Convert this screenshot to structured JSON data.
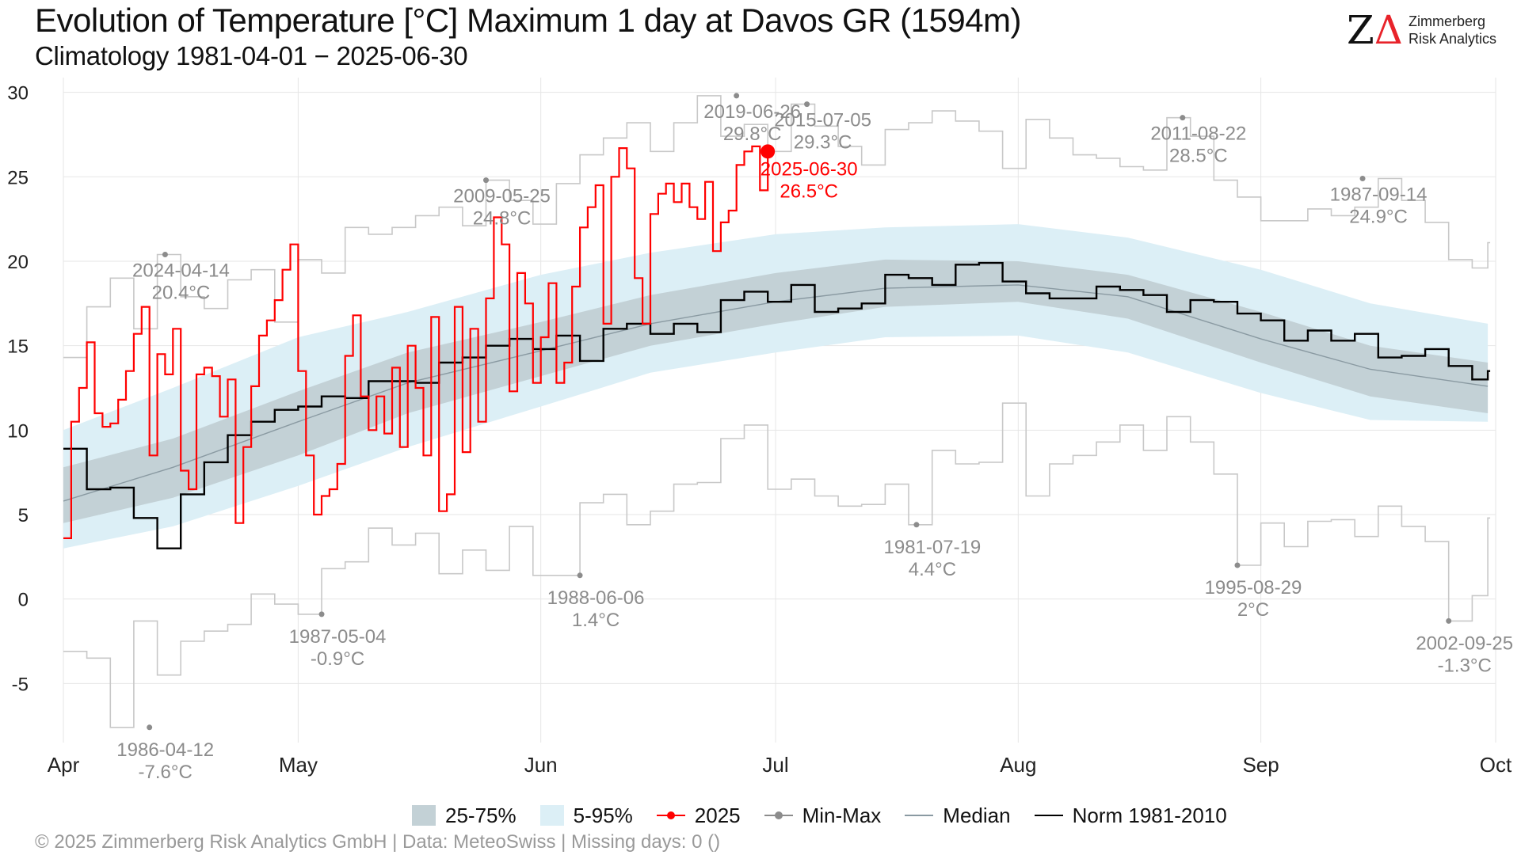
{
  "header": {
    "title": "Evolution of Temperature [°C] Maximum 1 day at Davos  GR (1594m)",
    "subtitle": "Climatology 1981-04-01 − 2025-06-30"
  },
  "logo": {
    "mark_z": "Z",
    "mark_delta": "Δ",
    "line1": "Zimmerberg",
    "line2": "Risk Analytics"
  },
  "footer": "©  2025 Zimmerberg Risk Analytics GmbH | Data: MeteoSwiss | Missing days: 0 ()",
  "colors": {
    "band_inner": "#c3d1d6",
    "band_outer": "#dceff6",
    "current": "#ff0000",
    "minmax": "#c8c8c8",
    "median": "#8a9aa2",
    "norm": "#000000",
    "grid": "#e6e6e6",
    "annotation": "#8c8c8c"
  },
  "legend": [
    {
      "label": "25-75%",
      "kind": "box",
      "color": "#c3d1d6"
    },
    {
      "label": "5-95%",
      "kind": "box",
      "color": "#dceff6"
    },
    {
      "label": "2025",
      "kind": "line-dot",
      "color": "#ff0000"
    },
    {
      "label": "Min-Max",
      "kind": "line-dot",
      "color": "#8c8c8c"
    },
    {
      "label": "Median",
      "kind": "line",
      "color": "#8a9aa2"
    },
    {
      "label": "Norm 1981-2010",
      "kind": "line",
      "color": "#000000"
    }
  ],
  "chart_data": {
    "type": "line",
    "title": "Evolution of Temperature [°C] Maximum 1 day at Davos  GR (1594m)",
    "subtitle": "Climatology 1981-04-01 − 2025-06-30",
    "x_start": "04-01",
    "x_end": "10-01",
    "x_ticks": [
      {
        "label": "Apr",
        "date": "04-01"
      },
      {
        "label": "May",
        "date": "05-01"
      },
      {
        "label": "Jun",
        "date": "06-01"
      },
      {
        "label": "Jul",
        "date": "07-01"
      },
      {
        "label": "Aug",
        "date": "08-01"
      },
      {
        "label": "Sep",
        "date": "09-01"
      },
      {
        "label": "Oct",
        "date": "10-01"
      }
    ],
    "ylim": [
      -8.5,
      30.5
    ],
    "y_ticks": [
      -5,
      0,
      5,
      10,
      15,
      20,
      25,
      30
    ],
    "grid": true,
    "legend_position": "bottom",
    "series": [
      {
        "name": "25-75%",
        "kind": "band",
        "x": [
          "04-01",
          "04-15",
          "05-01",
          "05-15",
          "06-01",
          "06-15",
          "07-01",
          "07-15",
          "08-01",
          "08-15",
          "09-01",
          "09-15",
          "09-30"
        ],
        "low": [
          4.5,
          6.0,
          8.5,
          11.0,
          13.2,
          15.0,
          16.3,
          17.3,
          17.6,
          16.6,
          14.0,
          12.0,
          11.0
        ],
        "high": [
          7.8,
          9.5,
          12.3,
          14.6,
          16.4,
          18.0,
          19.3,
          20.1,
          20.0,
          19.2,
          17.0,
          15.0,
          14.0
        ]
      },
      {
        "name": "5-95%",
        "kind": "band",
        "x": [
          "04-01",
          "04-15",
          "05-01",
          "05-15",
          "06-01",
          "06-15",
          "07-01",
          "07-15",
          "08-01",
          "08-15",
          "09-01",
          "09-15",
          "09-30"
        ],
        "low": [
          3.0,
          4.3,
          6.7,
          9.0,
          11.4,
          13.4,
          14.6,
          15.5,
          15.6,
          14.6,
          12.2,
          10.6,
          10.5
        ],
        "high": [
          10.0,
          12.5,
          15.5,
          17.0,
          19.2,
          20.5,
          21.6,
          22.0,
          22.2,
          21.4,
          19.5,
          17.5,
          16.3
        ]
      },
      {
        "name": "Median",
        "x": [
          "04-01",
          "04-15",
          "05-01",
          "05-15",
          "06-01",
          "06-15",
          "07-01",
          "07-15",
          "08-01",
          "08-15",
          "09-01",
          "09-15",
          "09-30"
        ],
        "y": [
          5.8,
          7.8,
          10.5,
          12.8,
          14.7,
          16.3,
          17.6,
          18.4,
          18.6,
          17.9,
          15.4,
          13.6,
          12.6
        ]
      },
      {
        "name": "Norm 1981-2010",
        "kind": "step",
        "x": [
          "04-01",
          "04-04",
          "04-07",
          "04-10",
          "04-13",
          "04-16",
          "04-19",
          "04-22",
          "04-25",
          "04-28",
          "05-01",
          "05-04",
          "05-07",
          "05-10",
          "05-13",
          "05-16",
          "05-19",
          "05-22",
          "05-25",
          "05-28",
          "05-31",
          "06-03",
          "06-06",
          "06-09",
          "06-12",
          "06-15",
          "06-18",
          "06-21",
          "06-24",
          "06-27",
          "06-30",
          "07-03",
          "07-06",
          "07-09",
          "07-12",
          "07-15",
          "07-18",
          "07-21",
          "07-24",
          "07-27",
          "07-30",
          "08-02",
          "08-05",
          "08-08",
          "08-11",
          "08-14",
          "08-17",
          "08-20",
          "08-23",
          "08-26",
          "08-29",
          "09-01",
          "09-04",
          "09-07",
          "09-10",
          "09-13",
          "09-16",
          "09-19",
          "09-22",
          "09-25",
          "09-28",
          "09-30"
        ],
        "y": [
          8.9,
          6.5,
          6.6,
          4.8,
          3.0,
          6.2,
          8.1,
          9.7,
          10.5,
          11.2,
          11.4,
          12.0,
          11.9,
          12.9,
          12.9,
          12.8,
          14.0,
          14.3,
          15.0,
          15.4,
          14.8,
          15.6,
          14.1,
          16.0,
          16.3,
          15.7,
          16.3,
          15.8,
          17.7,
          18.2,
          17.6,
          18.6,
          17.0,
          17.2,
          17.5,
          19.2,
          19.0,
          18.6,
          19.8,
          19.9,
          18.8,
          18.1,
          17.8,
          17.8,
          18.5,
          18.3,
          18.0,
          17.0,
          17.7,
          17.6,
          16.9,
          16.5,
          15.3,
          15.9,
          15.3,
          15.7,
          14.3,
          14.4,
          14.8,
          13.8,
          13.0,
          13.5
        ]
      },
      {
        "name": "Min-Max",
        "kind": "step-pair",
        "x": [
          "04-01",
          "04-04",
          "04-07",
          "04-10",
          "04-13",
          "04-16",
          "04-19",
          "04-22",
          "04-25",
          "04-28",
          "05-01",
          "05-04",
          "05-07",
          "05-10",
          "05-13",
          "05-16",
          "05-19",
          "05-22",
          "05-25",
          "05-28",
          "05-31",
          "06-03",
          "06-06",
          "06-09",
          "06-12",
          "06-15",
          "06-18",
          "06-21",
          "06-24",
          "06-27",
          "06-30",
          "07-03",
          "07-06",
          "07-09",
          "07-12",
          "07-15",
          "07-18",
          "07-21",
          "07-24",
          "07-27",
          "07-30",
          "08-02",
          "08-05",
          "08-08",
          "08-11",
          "08-14",
          "08-17",
          "08-20",
          "08-23",
          "08-26",
          "08-29",
          "09-01",
          "09-04",
          "09-07",
          "09-10",
          "09-13",
          "09-16",
          "09-19",
          "09-22",
          "09-25",
          "09-28",
          "09-30"
        ],
        "max": [
          14.3,
          17.3,
          19.0,
          16.0,
          20.4,
          17.9,
          17.2,
          18.9,
          19.5,
          16.4,
          20.1,
          19.3,
          22.0,
          21.6,
          22.0,
          22.7,
          23.2,
          22.1,
          24.8,
          23.6,
          22.2,
          24.6,
          26.3,
          27.3,
          28.2,
          26.5,
          28.2,
          29.8,
          27.4,
          28.1,
          26.5,
          29.3,
          28.0,
          26.8,
          25.7,
          27.8,
          28.2,
          28.9,
          28.3,
          27.7,
          25.5,
          28.4,
          27.3,
          26.3,
          26.1,
          25.6,
          25.4,
          28.5,
          27.4,
          24.8,
          23.8,
          22.4,
          22.4,
          23.1,
          22.7,
          23.2,
          24.9,
          23.6,
          22.3,
          20.1,
          19.6,
          21.1
        ],
        "min": [
          -3.1,
          -3.5,
          -7.6,
          -1.3,
          -4.5,
          -2.5,
          -1.9,
          -1.5,
          0.3,
          -0.3,
          -0.9,
          1.8,
          2.2,
          4.2,
          3.2,
          3.9,
          1.5,
          2.9,
          1.7,
          4.3,
          1.4,
          1.4,
          5.7,
          6.2,
          4.4,
          5.2,
          6.8,
          6.9,
          9.5,
          10.3,
          6.5,
          7.1,
          6.1,
          5.5,
          5.6,
          6.8,
          4.4,
          8.8,
          8.0,
          8.1,
          11.6,
          6.1,
          8.0,
          8.5,
          9.3,
          10.3,
          8.8,
          10.8,
          9.3,
          7.4,
          2.0,
          4.5,
          3.1,
          4.6,
          4.7,
          3.7,
          5.5,
          4.3,
          3.4,
          -1.3,
          0.2,
          4.8
        ]
      },
      {
        "name": "2025",
        "kind": "step",
        "x": [
          "04-01",
          "04-02",
          "04-03",
          "04-04",
          "04-05",
          "04-06",
          "04-07",
          "04-08",
          "04-09",
          "04-10",
          "04-11",
          "04-12",
          "04-13",
          "04-14",
          "04-15",
          "04-16",
          "04-17",
          "04-18",
          "04-19",
          "04-20",
          "04-21",
          "04-22",
          "04-23",
          "04-24",
          "04-25",
          "04-26",
          "04-27",
          "04-28",
          "04-29",
          "04-30",
          "05-01",
          "05-02",
          "05-03",
          "05-04",
          "05-05",
          "05-06",
          "05-07",
          "05-08",
          "05-09",
          "05-10",
          "05-11",
          "05-12",
          "05-13",
          "05-14",
          "05-15",
          "05-16",
          "05-17",
          "05-18",
          "05-19",
          "05-20",
          "05-21",
          "05-22",
          "05-23",
          "05-24",
          "05-25",
          "05-26",
          "05-27",
          "05-28",
          "05-29",
          "05-30",
          "05-31",
          "06-01",
          "06-02",
          "06-03",
          "06-04",
          "06-05",
          "06-06",
          "06-07",
          "06-08",
          "06-09",
          "06-10",
          "06-11",
          "06-12",
          "06-13",
          "06-14",
          "06-15",
          "06-16",
          "06-17",
          "06-18",
          "06-19",
          "06-20",
          "06-21",
          "06-22",
          "06-23",
          "06-24",
          "06-25",
          "06-26",
          "06-27",
          "06-28",
          "06-29",
          "06-30"
        ],
        "y": [
          3.6,
          10.5,
          12.5,
          15.2,
          11.0,
          10.2,
          10.4,
          11.8,
          13.5,
          15.7,
          17.3,
          8.5,
          14.5,
          13.3,
          16.0,
          7.6,
          6.5,
          13.3,
          13.7,
          13.2,
          10.8,
          13.0,
          4.5,
          9.0,
          12.6,
          15.6,
          16.5,
          17.7,
          19.5,
          21.0,
          13.5,
          8.5,
          5.0,
          6.1,
          6.5,
          8.0,
          14.4,
          16.8,
          12.0,
          10.0,
          12.0,
          9.8,
          13.7,
          9.0,
          15.0,
          12.5,
          8.5,
          16.7,
          5.2,
          6.2,
          17.3,
          8.7,
          16.0,
          10.5,
          17.8,
          22.6,
          21.0,
          12.3,
          19.3,
          17.5,
          12.8,
          15.5,
          18.7,
          12.8,
          14.0,
          18.5,
          22.0,
          23.2,
          24.5,
          16.3,
          25.0,
          26.7,
          25.5,
          19.0,
          16.3,
          22.8,
          24.0,
          24.6,
          23.5,
          24.6,
          23.2,
          22.5,
          24.7,
          20.6,
          22.3,
          23.0,
          25.7,
          26.5,
          26.8,
          24.2,
          26.5
        ]
      }
    ],
    "annotations": [
      {
        "label": "2024-04-14",
        "value": "20.4°C",
        "date": "04-14",
        "y": 20.4,
        "kind": "max"
      },
      {
        "label": "1986-04-12",
        "value": "-7.6°C",
        "date": "04-12",
        "y": -7.6,
        "kind": "min"
      },
      {
        "label": "1987-05-04",
        "value": "-0.9°C",
        "date": "05-04",
        "y": -0.9,
        "kind": "min"
      },
      {
        "label": "2009-05-25",
        "value": "24.8°C",
        "date": "05-25",
        "y": 24.8,
        "kind": "max"
      },
      {
        "label": "1988-06-06",
        "value": "1.4°C",
        "date": "06-06",
        "y": 1.4,
        "kind": "min"
      },
      {
        "label": "2019-06-26",
        "value": "29.8°C",
        "date": "06-26",
        "y": 29.8,
        "kind": "max"
      },
      {
        "label": "2015-07-05",
        "value": "29.3°C",
        "date": "07-05",
        "y": 29.3,
        "kind": "max"
      },
      {
        "label": "1981-07-19",
        "value": "4.4°C",
        "date": "07-19",
        "y": 4.4,
        "kind": "min"
      },
      {
        "label": "2011-08-22",
        "value": "28.5°C",
        "date": "08-22",
        "y": 28.5,
        "kind": "max"
      },
      {
        "label": "1995-08-29",
        "value": "2°C",
        "date": "08-29",
        "y": 2.0,
        "kind": "min"
      },
      {
        "label": "1987-09-14",
        "value": "24.9°C",
        "date": "09-14",
        "y": 24.9,
        "kind": "max"
      },
      {
        "label": "2002-09-25",
        "value": "-1.3°C",
        "date": "09-25",
        "y": -1.3,
        "kind": "min"
      },
      {
        "label": "2025-06-30",
        "value": "26.5°C",
        "date": "06-30",
        "y": 26.5,
        "kind": "current"
      }
    ]
  }
}
